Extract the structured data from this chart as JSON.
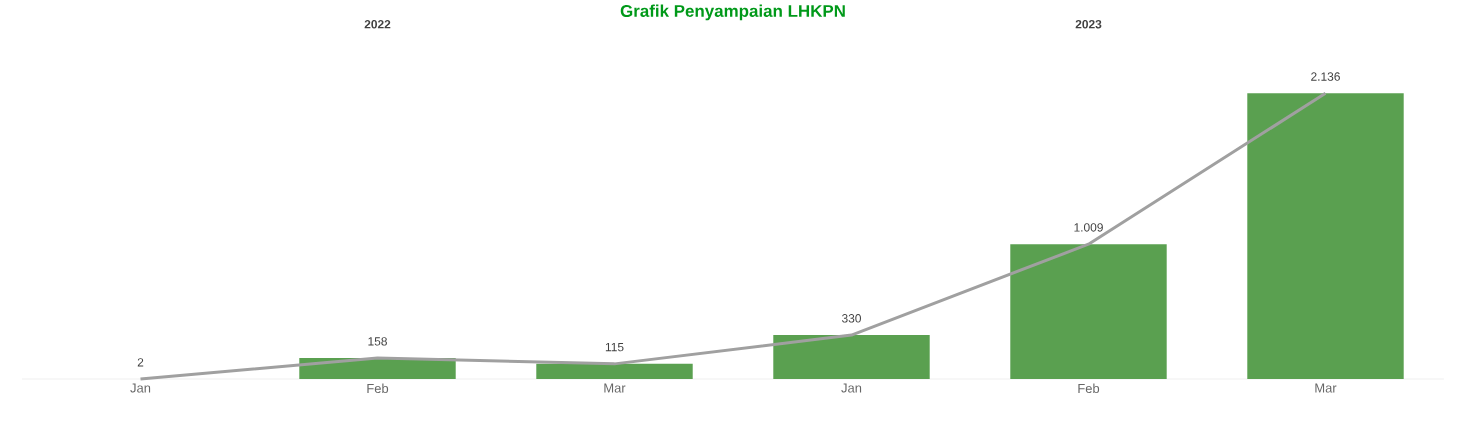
{
  "chart_data": {
    "type": "bar",
    "title": "Grafik Penyampaian LHKPN",
    "categories": [
      "Jan",
      "Feb",
      "Mar",
      "Jan",
      "Feb",
      "Mar"
    ],
    "series": [
      {
        "color": "#5aa050",
        "values": [
          2,
          158,
          115,
          330,
          1009,
          2136
        ],
        "value_labels": [
          "2",
          "158",
          "115",
          "330",
          "1.009",
          "2.136"
        ]
      },
      {
        "type": "line",
        "color": "#a0a0a0",
        "values": [
          2,
          158,
          115,
          330,
          1009,
          2136
        ]
      }
    ],
    "annotations": [
      "2022",
      "2023"
    ],
    "marker": "none",
    "line_style": "solid"
  }
}
